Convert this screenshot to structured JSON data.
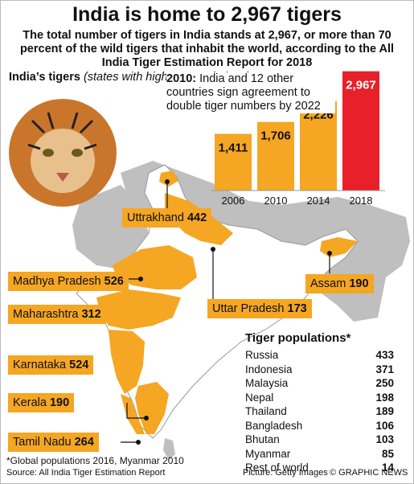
{
  "title": "India is home to 2,967 tigers",
  "subtitle": "The total number of tigers in India stands at 2,967, or more than 70 percent of the wild tigers that inhabit the world, according to the All India Tiger Estimation Report for 2018",
  "states_title_bold": "India’s tigers",
  "states_title_italic": "(states with highest populations)",
  "states": [
    {
      "name": "Uttrakhand",
      "value": "442"
    },
    {
      "name": "Madhya Pradesh",
      "value": "526"
    },
    {
      "name": "Maharashtra",
      "value": "312"
    },
    {
      "name": "Uttar Pradesh",
      "value": "173"
    },
    {
      "name": "Assam",
      "value": "190"
    },
    {
      "name": "Karnataka",
      "value": "524"
    },
    {
      "name": "Kerala",
      "value": "190"
    },
    {
      "name": "Tamil Nadu",
      "value": "264"
    }
  ],
  "bar_note_bold": "2010:",
  "bar_note_text": "India and 12 other countries sign agreement to double tiger numbers by 2022",
  "chart_data": [
    {
      "type": "bar",
      "categories": [
        "2006",
        "2010",
        "2014",
        "2018"
      ],
      "values": [
        1411,
        1706,
        2226,
        2967
      ],
      "data_labels": [
        "1,411",
        "1,706",
        "2,226",
        "2,967"
      ],
      "title": "",
      "xlabel": "",
      "ylabel": "",
      "ylim": [
        0,
        3000
      ],
      "grid": false,
      "colors": [
        "#f5a623",
        "#f5a623",
        "#f5a623",
        "#e8202a"
      ]
    },
    {
      "type": "table",
      "title": "Tiger populations*",
      "rows": [
        {
          "country": "Russia",
          "value": "433"
        },
        {
          "country": "Indonesia",
          "value": "371"
        },
        {
          "country": "Malaysia",
          "value": "250"
        },
        {
          "country": "Nepal",
          "value": "198"
        },
        {
          "country": "Thailand",
          "value": "189"
        },
        {
          "country": "Bangladesh",
          "value": "106"
        },
        {
          "country": "Bhutan",
          "value": "103"
        },
        {
          "country": "Myanmar",
          "value": "85"
        },
        {
          "country": "Rest of world",
          "value": "14"
        }
      ]
    }
  ],
  "footnote": "*Global populations 2016, Myanmar 2010",
  "source": "Source: All India Tiger Estimation Report",
  "picture_credit": "Picture: Getty Images",
  "copyright": "© GRAPHIC NEWS",
  "colors": {
    "orange": "#f5a623",
    "red": "#e8202a",
    "land": "#bfbfbf",
    "sea": "#ffffff"
  }
}
